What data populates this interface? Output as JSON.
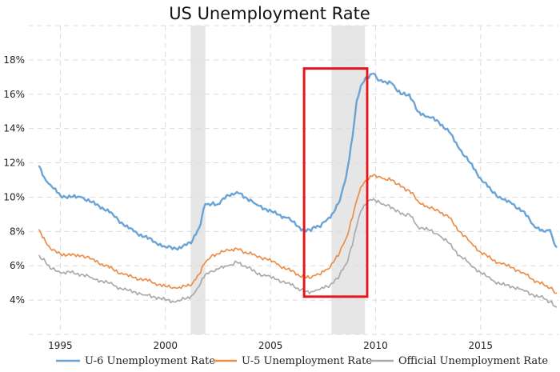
{
  "chart_data": {
    "type": "line",
    "title": "US Unemployment Rate",
    "xlabel": "",
    "ylabel": "",
    "xlim": [
      1993.5,
      2018.7
    ],
    "ylim": [
      2,
      20
    ],
    "x_ticks": [
      1995,
      2000,
      2005,
      2010,
      2015
    ],
    "y_ticks": [
      4,
      6,
      8,
      10,
      12,
      14,
      16,
      18
    ],
    "y_tick_suffix": "%",
    "grid": true,
    "legend_position": "bottom",
    "recession_bands": [
      [
        2001.2,
        2001.9
      ],
      [
        2007.9,
        2009.5
      ]
    ],
    "highlight_box": {
      "x": [
        2006.6,
        2009.6
      ],
      "y": [
        4.2,
        17.5
      ],
      "color": "#e8141b"
    },
    "series": [
      {
        "name": "U-6 Unemployment Rate",
        "color": "#6aa3d5",
        "points": [
          [
            1994.0,
            11.8
          ],
          [
            1994.3,
            11.0
          ],
          [
            1994.6,
            10.6
          ],
          [
            1995.0,
            10.1
          ],
          [
            1995.5,
            10.0
          ],
          [
            1996.0,
            10.0
          ],
          [
            1996.5,
            9.7
          ],
          [
            1997.0,
            9.4
          ],
          [
            1997.5,
            9.0
          ],
          [
            1998.0,
            8.4
          ],
          [
            1998.5,
            8.0
          ],
          [
            1999.0,
            7.7
          ],
          [
            1999.5,
            7.4
          ],
          [
            2000.0,
            7.1
          ],
          [
            2000.5,
            7.0
          ],
          [
            2001.0,
            7.2
          ],
          [
            2001.3,
            7.5
          ],
          [
            2001.6,
            8.2
          ],
          [
            2001.9,
            9.6
          ],
          [
            2002.2,
            9.6
          ],
          [
            2002.5,
            9.6
          ],
          [
            2003.0,
            10.1
          ],
          [
            2003.4,
            10.3
          ],
          [
            2003.8,
            10.0
          ],
          [
            2004.3,
            9.6
          ],
          [
            2004.8,
            9.3
          ],
          [
            2005.3,
            9.0
          ],
          [
            2005.8,
            8.8
          ],
          [
            2006.3,
            8.3
          ],
          [
            2006.7,
            8.0
          ],
          [
            2007.0,
            8.2
          ],
          [
            2007.3,
            8.3
          ],
          [
            2007.7,
            8.7
          ],
          [
            2008.0,
            9.1
          ],
          [
            2008.3,
            9.8
          ],
          [
            2008.6,
            11.2
          ],
          [
            2008.9,
            13.5
          ],
          [
            2009.1,
            15.6
          ],
          [
            2009.3,
            16.5
          ],
          [
            2009.6,
            17.0
          ],
          [
            2009.9,
            17.2
          ],
          [
            2010.2,
            16.8
          ],
          [
            2010.5,
            16.7
          ],
          [
            2010.8,
            16.6
          ],
          [
            2011.2,
            16.0
          ],
          [
            2011.6,
            16.0
          ],
          [
            2012.0,
            15.0
          ],
          [
            2012.5,
            14.7
          ],
          [
            2013.0,
            14.4
          ],
          [
            2013.5,
            13.8
          ],
          [
            2014.0,
            12.8
          ],
          [
            2014.5,
            12.0
          ],
          [
            2015.0,
            11.1
          ],
          [
            2015.5,
            10.4
          ],
          [
            2016.0,
            9.9
          ],
          [
            2016.5,
            9.6
          ],
          [
            2017.0,
            9.2
          ],
          [
            2017.5,
            8.4
          ],
          [
            2018.0,
            8.0
          ],
          [
            2018.3,
            8.1
          ],
          [
            2018.5,
            7.3
          ],
          [
            2018.6,
            7.1
          ]
        ]
      },
      {
        "name": "U-5 Unemployment Rate",
        "color": "#ec8d48",
        "points": [
          [
            1994.0,
            8.1
          ],
          [
            1994.3,
            7.4
          ],
          [
            1994.6,
            6.9
          ],
          [
            1995.0,
            6.7
          ],
          [
            1995.5,
            6.6
          ],
          [
            1996.0,
            6.6
          ],
          [
            1996.5,
            6.4
          ],
          [
            1997.0,
            6.1
          ],
          [
            1997.5,
            5.8
          ],
          [
            1998.0,
            5.5
          ],
          [
            1998.5,
            5.3
          ],
          [
            1999.0,
            5.2
          ],
          [
            1999.5,
            5.0
          ],
          [
            2000.0,
            4.8
          ],
          [
            2000.5,
            4.7
          ],
          [
            2001.0,
            4.8
          ],
          [
            2001.3,
            5.0
          ],
          [
            2001.6,
            5.5
          ],
          [
            2001.9,
            6.2
          ],
          [
            2002.2,
            6.6
          ],
          [
            2002.5,
            6.7
          ],
          [
            2003.0,
            6.9
          ],
          [
            2003.4,
            7.0
          ],
          [
            2003.8,
            6.8
          ],
          [
            2004.3,
            6.6
          ],
          [
            2004.8,
            6.4
          ],
          [
            2005.3,
            6.1
          ],
          [
            2005.8,
            5.8
          ],
          [
            2006.3,
            5.5
          ],
          [
            2006.7,
            5.3
          ],
          [
            2007.0,
            5.4
          ],
          [
            2007.3,
            5.5
          ],
          [
            2007.7,
            5.8
          ],
          [
            2008.0,
            6.2
          ],
          [
            2008.3,
            6.8
          ],
          [
            2008.6,
            7.6
          ],
          [
            2008.9,
            8.8
          ],
          [
            2009.1,
            9.8
          ],
          [
            2009.3,
            10.6
          ],
          [
            2009.6,
            11.0
          ],
          [
            2009.9,
            11.3
          ],
          [
            2010.2,
            11.2
          ],
          [
            2010.5,
            11.0
          ],
          [
            2010.8,
            11.0
          ],
          [
            2011.2,
            10.6
          ],
          [
            2011.6,
            10.4
          ],
          [
            2012.0,
            9.8
          ],
          [
            2012.5,
            9.4
          ],
          [
            2013.0,
            9.2
          ],
          [
            2013.5,
            8.8
          ],
          [
            2014.0,
            8.0
          ],
          [
            2014.5,
            7.4
          ],
          [
            2015.0,
            6.8
          ],
          [
            2015.5,
            6.4
          ],
          [
            2016.0,
            6.1
          ],
          [
            2016.5,
            5.9
          ],
          [
            2017.0,
            5.6
          ],
          [
            2017.5,
            5.2
          ],
          [
            2018.0,
            4.9
          ],
          [
            2018.3,
            4.7
          ],
          [
            2018.6,
            4.4
          ]
        ]
      },
      {
        "name": "Official Unemployment Rate",
        "color": "#aaaaaa",
        "points": [
          [
            1994.0,
            6.6
          ],
          [
            1994.3,
            6.2
          ],
          [
            1994.6,
            5.8
          ],
          [
            1995.0,
            5.6
          ],
          [
            1995.5,
            5.6
          ],
          [
            1996.0,
            5.5
          ],
          [
            1996.5,
            5.3
          ],
          [
            1997.0,
            5.1
          ],
          [
            1997.5,
            4.9
          ],
          [
            1998.0,
            4.6
          ],
          [
            1998.5,
            4.5
          ],
          [
            1999.0,
            4.3
          ],
          [
            1999.5,
            4.2
          ],
          [
            2000.0,
            4.0
          ],
          [
            2000.5,
            3.9
          ],
          [
            2001.0,
            4.1
          ],
          [
            2001.3,
            4.3
          ],
          [
            2001.6,
            4.8
          ],
          [
            2001.9,
            5.5
          ],
          [
            2002.2,
            5.7
          ],
          [
            2002.5,
            5.8
          ],
          [
            2003.0,
            6.0
          ],
          [
            2003.4,
            6.2
          ],
          [
            2003.8,
            6.0
          ],
          [
            2004.3,
            5.6
          ],
          [
            2004.8,
            5.4
          ],
          [
            2005.3,
            5.2
          ],
          [
            2005.8,
            5.0
          ],
          [
            2006.3,
            4.7
          ],
          [
            2006.7,
            4.5
          ],
          [
            2007.0,
            4.5
          ],
          [
            2007.3,
            4.6
          ],
          [
            2007.7,
            4.8
          ],
          [
            2008.0,
            5.0
          ],
          [
            2008.3,
            5.5
          ],
          [
            2008.6,
            6.1
          ],
          [
            2008.9,
            7.2
          ],
          [
            2009.1,
            8.3
          ],
          [
            2009.3,
            9.2
          ],
          [
            2009.6,
            9.7
          ],
          [
            2009.9,
            9.9
          ],
          [
            2010.2,
            9.7
          ],
          [
            2010.5,
            9.5
          ],
          [
            2010.8,
            9.4
          ],
          [
            2011.2,
            9.0
          ],
          [
            2011.6,
            9.0
          ],
          [
            2012.0,
            8.3
          ],
          [
            2012.5,
            8.1
          ],
          [
            2013.0,
            7.8
          ],
          [
            2013.5,
            7.3
          ],
          [
            2014.0,
            6.6
          ],
          [
            2014.5,
            6.1
          ],
          [
            2015.0,
            5.6
          ],
          [
            2015.5,
            5.2
          ],
          [
            2016.0,
            4.9
          ],
          [
            2016.5,
            4.8
          ],
          [
            2017.0,
            4.6
          ],
          [
            2017.5,
            4.3
          ],
          [
            2018.0,
            4.1
          ],
          [
            2018.3,
            3.9
          ],
          [
            2018.6,
            3.6
          ]
        ]
      }
    ]
  }
}
